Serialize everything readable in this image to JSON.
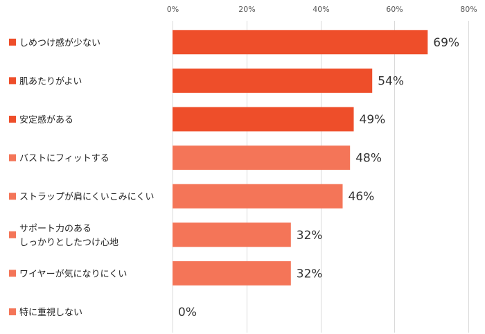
{
  "chart_data": {
    "type": "bar",
    "orientation": "horizontal",
    "categories": [
      "しめつけ感が少ない",
      "肌あたりがよい",
      "安定感がある",
      "バストにフィットする",
      "ストラップが肩にくいこみにくい",
      "サポート力のある\nしっかりとしたつけ心地",
      "ワイヤーが気になりにくい",
      "特に重視しない"
    ],
    "values": [
      69,
      54,
      49,
      48,
      46,
      32,
      32,
      0
    ],
    "data_labels": [
      "69%",
      "54%",
      "49%",
      "48%",
      "46%",
      "32%",
      "32%",
      "0%"
    ],
    "bar_colors": [
      "#EE4E2A",
      "#EE4E2A",
      "#EE4E2A",
      "#F47558",
      "#F47558",
      "#F47558",
      "#F47558",
      "#F47558"
    ],
    "xlim": [
      0,
      80
    ],
    "x_ticks": [
      0,
      20,
      40,
      60,
      80
    ],
    "x_tick_labels": [
      "0%",
      "20%",
      "40%",
      "60%",
      "80%"
    ],
    "x_axis_position": "top",
    "grid": true,
    "legend": "none",
    "title": "",
    "xlabel": "",
    "ylabel": ""
  }
}
